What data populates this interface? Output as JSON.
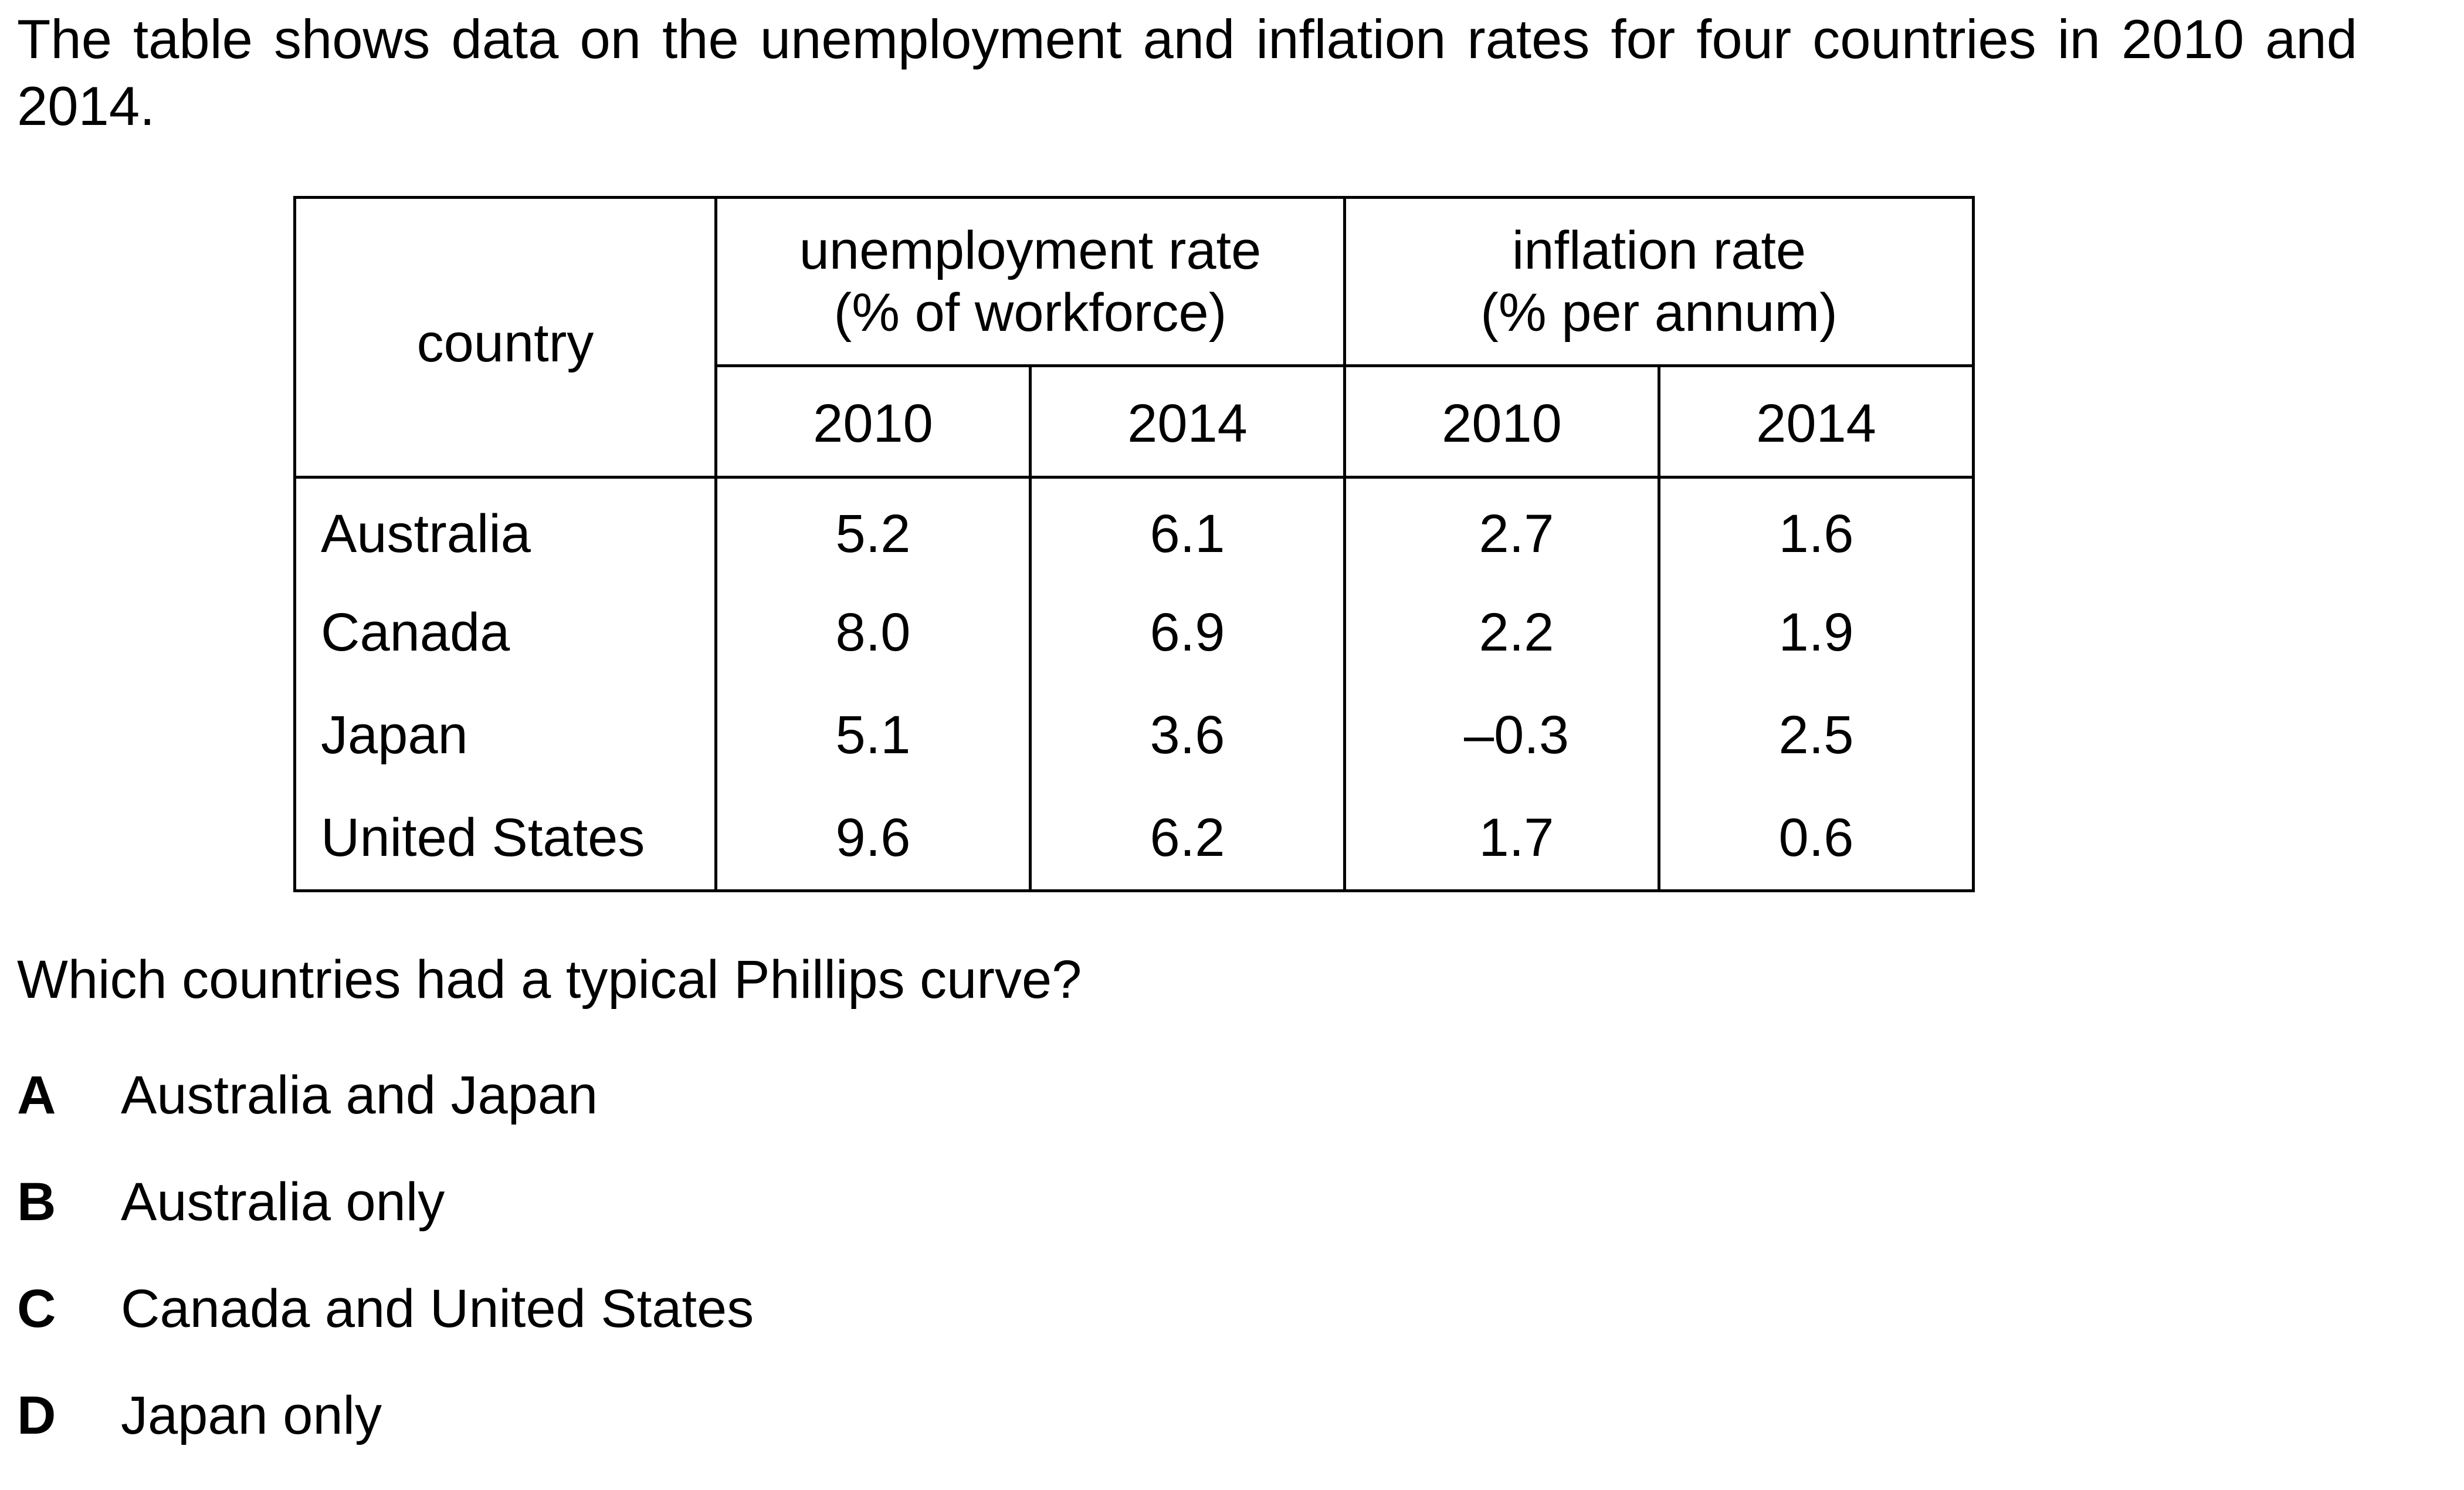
{
  "intro": "The table shows data on the unemployment and inflation rates for four countries in 2010 and 2014.",
  "table": {
    "country_header": "country",
    "groups": [
      {
        "line1": "unemployment rate",
        "line2": "(% of workforce)"
      },
      {
        "line1": "inflation rate",
        "line2": "(% per annum)"
      }
    ],
    "years": [
      "2010",
      "2014",
      "2010",
      "2014"
    ],
    "rows": [
      {
        "country": "Australia",
        "values": [
          "5.2",
          "6.1",
          "2.7",
          "1.6"
        ]
      },
      {
        "country": "Canada",
        "values": [
          "8.0",
          "6.9",
          "2.2",
          "1.9"
        ]
      },
      {
        "country": "Japan",
        "values": [
          "5.1",
          "3.6",
          "–0.3",
          "2.5"
        ]
      },
      {
        "country": "United States",
        "values": [
          "9.6",
          "6.2",
          "1.7",
          "0.6"
        ]
      }
    ]
  },
  "question": "Which countries had a typical Phillips curve?",
  "options": [
    {
      "letter": "A",
      "text": "Australia and Japan"
    },
    {
      "letter": "B",
      "text": "Australia only"
    },
    {
      "letter": "C",
      "text": "Canada and United States"
    },
    {
      "letter": "D",
      "text": "Japan only"
    }
  ]
}
